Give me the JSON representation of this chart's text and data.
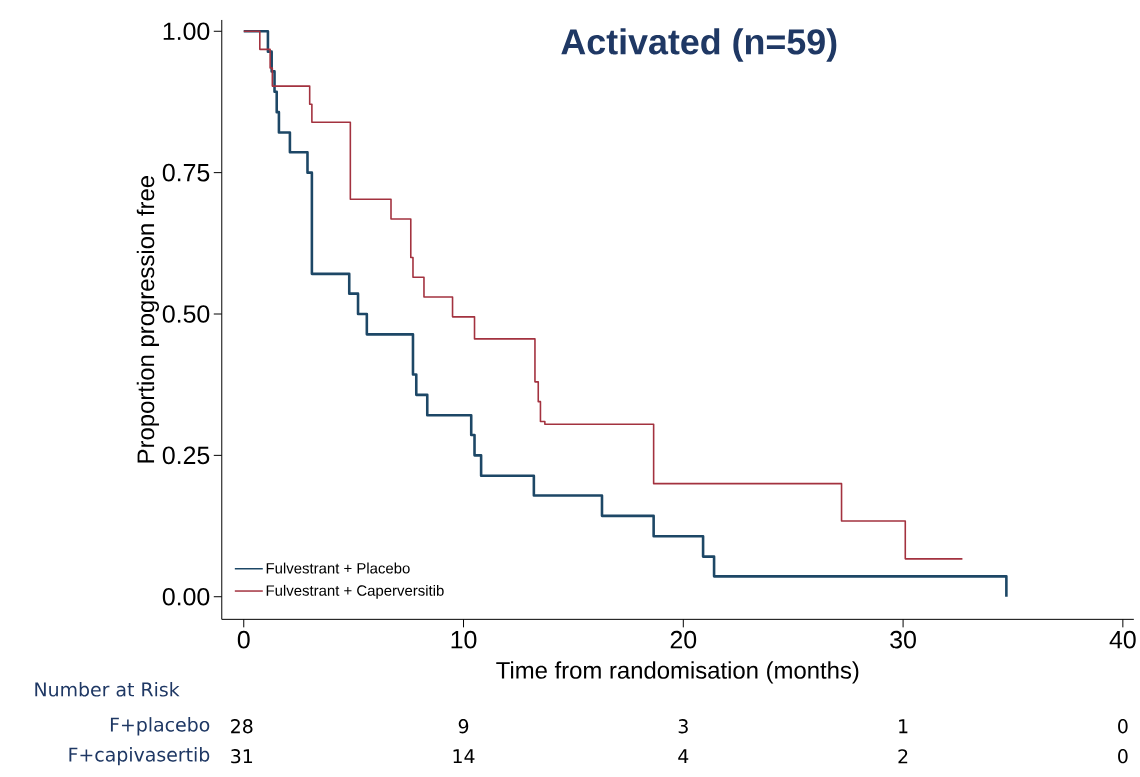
{
  "chart_data": {
    "type": "step",
    "title": "Activated (n=59)",
    "xlabel": "Time from randomisation (months)",
    "ylabel": "Proportion progression free",
    "series": [
      {
        "name": "Fulvestrant + Placebo",
        "color": "#1d4766",
        "x": [
          0,
          1.1,
          1.27,
          1.4,
          1.5,
          1.6,
          2.1,
          2.9,
          3.1,
          4.8,
          5.2,
          5.6,
          7.7,
          7.85,
          8.35,
          10.35,
          10.5,
          10.8,
          13.2,
          16.3,
          18.65,
          20.9,
          21.4,
          34.7
        ],
        "values": [
          1,
          0.964,
          0.929,
          0.893,
          0.857,
          0.821,
          0.786,
          0.75,
          0.571,
          0.536,
          0.5,
          0.464,
          0.393,
          0.357,
          0.321,
          0.286,
          0.25,
          0.214,
          0.179,
          0.143,
          0.107,
          0.071,
          0.036,
          0
        ]
      },
      {
        "name": "Fulvestrant + Caperversitib",
        "color": "#a3323f",
        "x": [
          0,
          0.73,
          1.2,
          1.3,
          3.0,
          3.1,
          4.85,
          6.7,
          7.6,
          7.7,
          8.2,
          9.5,
          10.5,
          13.25,
          13.4,
          13.5,
          13.7,
          18.65,
          27.2,
          30.1,
          32.7
        ],
        "values": [
          1,
          0.968,
          0.935,
          0.903,
          0.871,
          0.839,
          0.703,
          0.668,
          0.6,
          0.565,
          0.53,
          0.495,
          0.456,
          0.38,
          0.345,
          0.31,
          0.305,
          0.2,
          0.134,
          0.067,
          0.067
        ]
      }
    ],
    "xlim": [
      -1,
      40.5
    ],
    "ylim": [
      -0.04,
      1.02
    ],
    "xticks": [
      0,
      10,
      20,
      30,
      40
    ],
    "yticks": [
      {
        "value": 0,
        "label": "0.00"
      },
      {
        "value": 0.25,
        "label": "0.25"
      },
      {
        "value": 0.5,
        "label": "0.50"
      },
      {
        "value": 0.75,
        "label": "0.75"
      },
      {
        "value": 1,
        "label": "1.00"
      }
    ],
    "legend": "bottom left",
    "grid": false,
    "annotations": [
      "Number at Risk",
      "F+placebo",
      "28",
      "9",
      "3",
      "1",
      "0",
      "F+capivasertib",
      "31",
      "14",
      "4",
      "2",
      "0"
    ]
  }
}
